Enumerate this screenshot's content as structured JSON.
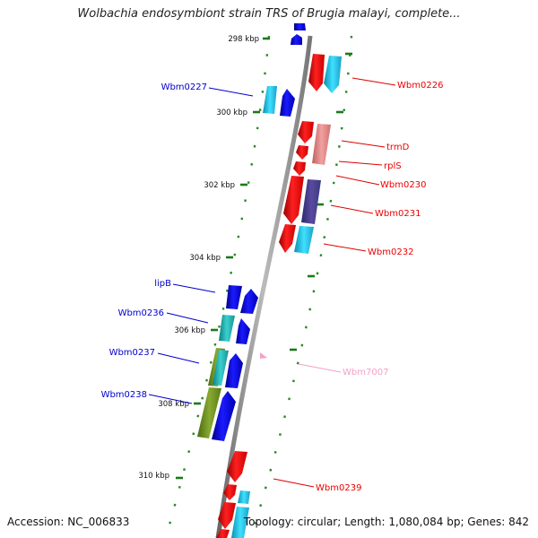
{
  "header": {
    "title": "Wolbachia endosymbiont strain TRS of Brugia malayi, complete..."
  },
  "footer": {
    "accession": "Accession: NC_006833",
    "topology": "Topology: circular; Length: 1,080,084 bp; Genes: 842"
  },
  "ticks": [
    "298 kbp",
    "300 kbp",
    "302 kbp",
    "304 kbp",
    "306 kbp",
    "308 kbp",
    "310 kbp"
  ],
  "genes": [
    {
      "name": "Wbm0226",
      "strand": "forward",
      "color": "#ee0000"
    },
    {
      "name": "Wbm0227",
      "strand": "reverse",
      "color": "#0000cc"
    },
    {
      "name": "trmD",
      "strand": "forward",
      "color": "#ee0000"
    },
    {
      "name": "rplS",
      "strand": "forward",
      "color": "#ee0000"
    },
    {
      "name": "Wbm0230",
      "strand": "forward",
      "color": "#ee0000"
    },
    {
      "name": "Wbm0231",
      "strand": "forward",
      "color": "#ee0000"
    },
    {
      "name": "Wbm0232",
      "strand": "forward",
      "color": "#ee0000"
    },
    {
      "name": "lipB",
      "strand": "reverse",
      "color": "#0000cc"
    },
    {
      "name": "Wbm0236",
      "strand": "reverse",
      "color": "#0000cc"
    },
    {
      "name": "Wbm0237",
      "strand": "reverse",
      "color": "#0000cc"
    },
    {
      "name": "Wbm0238",
      "strand": "reverse",
      "color": "#0000cc"
    },
    {
      "name": "Wbm7007",
      "strand": "forward",
      "color": "#f4a0c8"
    },
    {
      "name": "Wbm0239",
      "strand": "forward",
      "color": "#ee0000"
    }
  ],
  "colors": {
    "forward_label": "#ee0000",
    "reverse_label": "#0000cc",
    "pseudo_label": "#f4a0c8",
    "backbone": "#888888",
    "dots": "#2a8a2a"
  }
}
